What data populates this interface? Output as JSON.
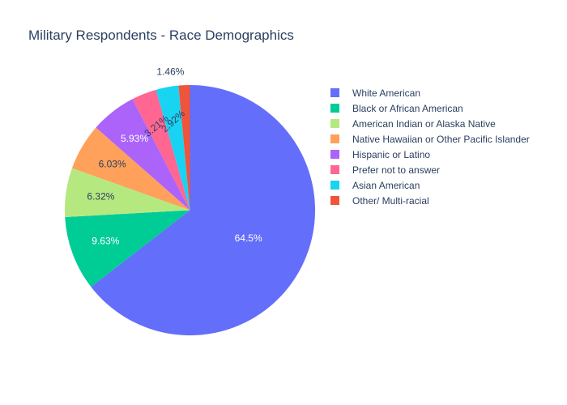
{
  "chart_data": {
    "type": "pie",
    "title": "Military Respondents - Race Demographics",
    "labels": [
      "White American",
      "Black or African American",
      "American Indian or Alaska Native",
      "Native Hawaiian or Other Pacific Islander",
      "Hispanic or Latino",
      "Prefer not to answer",
      "Asian American",
      "Other/ Multi-racial"
    ],
    "values": [
      64.5,
      9.63,
      6.32,
      6.03,
      5.93,
      3.21,
      2.92,
      1.46
    ],
    "value_labels": [
      "64.5%",
      "9.63%",
      "6.32%",
      "6.03%",
      "5.93%",
      "3.21%",
      "2.92%",
      "1.46%"
    ],
    "colors": [
      "#636efa",
      "#00cc96",
      "#b6e880",
      "#ffa15a",
      "#ab63fa",
      "#ff6692",
      "#19d3f3",
      "#ef553b"
    ],
    "direction": "clockwise",
    "legend_position": "right"
  }
}
